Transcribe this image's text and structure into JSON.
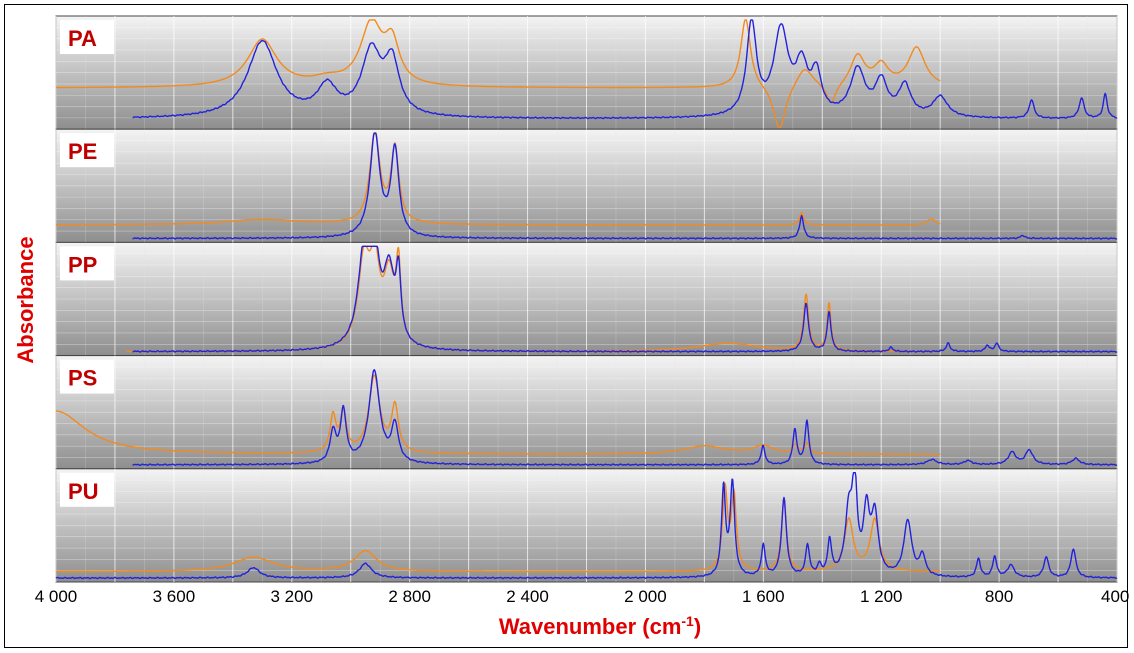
{
  "chart_data": {
    "type": "line",
    "xlabel": "Wavenumber (cm",
    "xlabel_sup": "-1",
    "xlabel_close": ")",
    "ylabel": "Absorbance",
    "xlim": [
      4000,
      400
    ],
    "x_reversed": true,
    "x_ticks": [
      4000,
      3600,
      3200,
      2800,
      2400,
      2000,
      1600,
      1200,
      800,
      400
    ],
    "x_tick_labels": [
      "4 000",
      "3 600",
      "3 200",
      "2 800",
      "2 400",
      "2 000",
      "1 600",
      "1 200",
      "800",
      "400"
    ],
    "grid": true,
    "series_colors": {
      "reference": "#f28a1e",
      "sample": "#2222dd"
    },
    "panels": [
      {
        "label": "PA",
        "ref_baseline": 0.36,
        "sample_baseline": 0.06,
        "ref_start": 4000,
        "ref_end": 1000,
        "sample_start": 3740,
        "sample_end": 400,
        "reference": [
          {
            "x": 3300,
            "h": 0.46,
            "w": 60
          },
          {
            "x": 3080,
            "h": 0.06,
            "w": 60
          },
          {
            "x": 2930,
            "h": 0.6,
            "w": 45
          },
          {
            "x": 2860,
            "h": 0.38,
            "w": 30
          },
          {
            "x": 1660,
            "h": 0.68,
            "w": 20
          },
          {
            "x": 1545,
            "h": -0.45,
            "w": 25
          },
          {
            "x": 1460,
            "h": 0.2,
            "w": 35
          },
          {
            "x": 1370,
            "h": -0.2,
            "w": 20
          },
          {
            "x": 1280,
            "h": 0.3,
            "w": 30
          },
          {
            "x": 1200,
            "h": 0.2,
            "w": 30
          },
          {
            "x": 1080,
            "h": 0.38,
            "w": 35
          }
        ],
        "sample": [
          {
            "x": 3300,
            "h": 0.74,
            "w": 60
          },
          {
            "x": 3080,
            "h": 0.28,
            "w": 40
          },
          {
            "x": 2930,
            "h": 0.62,
            "w": 40
          },
          {
            "x": 2860,
            "h": 0.5,
            "w": 30
          },
          {
            "x": 1640,
            "h": 0.9,
            "w": 20
          },
          {
            "x": 1540,
            "h": 0.82,
            "w": 30
          },
          {
            "x": 1470,
            "h": 0.45,
            "w": 25
          },
          {
            "x": 1420,
            "h": 0.38,
            "w": 20
          },
          {
            "x": 1280,
            "h": 0.45,
            "w": 30
          },
          {
            "x": 1200,
            "h": 0.33,
            "w": 25
          },
          {
            "x": 1120,
            "h": 0.3,
            "w": 25
          },
          {
            "x": 1000,
            "h": 0.2,
            "w": 30
          },
          {
            "x": 690,
            "h": 0.18,
            "w": 10
          },
          {
            "x": 520,
            "h": 0.2,
            "w": 10
          },
          {
            "x": 440,
            "h": 0.24,
            "w": 8
          }
        ]
      },
      {
        "label": "PE",
        "ref_baseline": 0.13,
        "sample_baseline": 0.0,
        "ref_start": 4000,
        "ref_end": 1000,
        "sample_start": 3740,
        "sample_end": 400,
        "reference": [
          {
            "x": 3300,
            "h": 0.05,
            "w": 150
          },
          {
            "x": 2918,
            "h": 0.88,
            "w": 20
          },
          {
            "x": 2850,
            "h": 0.72,
            "w": 16
          },
          {
            "x": 1470,
            "h": 0.12,
            "w": 8
          },
          {
            "x": 1030,
            "h": 0.06,
            "w": 15
          }
        ],
        "sample": [
          {
            "x": 2918,
            "h": 1.0,
            "w": 20
          },
          {
            "x": 2850,
            "h": 0.84,
            "w": 16
          },
          {
            "x": 1470,
            "h": 0.22,
            "w": 8
          },
          {
            "x": 720,
            "h": 0.03,
            "w": 8
          }
        ]
      },
      {
        "label": "PP",
        "ref_baseline": 0.0,
        "sample_baseline": 0.0,
        "ref_start": 3760,
        "ref_end": 1000,
        "sample_start": 3740,
        "sample_end": 400,
        "reference": [
          {
            "x": 2955,
            "h": 0.82,
            "w": 24
          },
          {
            "x": 2918,
            "h": 0.72,
            "w": 20
          },
          {
            "x": 2870,
            "h": 0.66,
            "w": 22
          },
          {
            "x": 2838,
            "h": 0.72,
            "w": 10
          },
          {
            "x": 1720,
            "h": 0.08,
            "w": 120
          },
          {
            "x": 1455,
            "h": 0.54,
            "w": 10
          },
          {
            "x": 1377,
            "h": 0.46,
            "w": 8
          }
        ],
        "sample": [
          {
            "x": 2955,
            "h": 0.9,
            "w": 24
          },
          {
            "x": 2918,
            "h": 0.78,
            "w": 20
          },
          {
            "x": 2870,
            "h": 0.7,
            "w": 22
          },
          {
            "x": 2838,
            "h": 0.62,
            "w": 10
          },
          {
            "x": 1455,
            "h": 0.46,
            "w": 10
          },
          {
            "x": 1377,
            "h": 0.38,
            "w": 8
          },
          {
            "x": 1167,
            "h": 0.04,
            "w": 8
          },
          {
            "x": 973,
            "h": 0.08,
            "w": 8
          },
          {
            "x": 840,
            "h": 0.06,
            "w": 8
          },
          {
            "x": 808,
            "h": 0.08,
            "w": 8
          }
        ]
      },
      {
        "label": "PS",
        "ref_baseline": 0.1,
        "sample_baseline": 0.0,
        "ref_start": 4000,
        "ref_end": 1000,
        "sample_start": 3740,
        "sample_end": 400,
        "reference": [
          {
            "x": 4000,
            "h": 0.42,
            "w": 120
          },
          {
            "x": 3060,
            "h": 0.35,
            "w": 12
          },
          {
            "x": 3025,
            "h": 0.38,
            "w": 12
          },
          {
            "x": 2920,
            "h": 0.74,
            "w": 22
          },
          {
            "x": 2850,
            "h": 0.44,
            "w": 14
          },
          {
            "x": 1800,
            "h": 0.08,
            "w": 80
          },
          {
            "x": 1601,
            "h": 0.08,
            "w": 40
          },
          {
            "x": 1493,
            "h": 0.08,
            "w": 10
          },
          {
            "x": 1452,
            "h": 0.1,
            "w": 10
          }
        ],
        "sample": [
          {
            "x": 3060,
            "h": 0.3,
            "w": 12
          },
          {
            "x": 3025,
            "h": 0.5,
            "w": 12
          },
          {
            "x": 2920,
            "h": 0.9,
            "w": 22
          },
          {
            "x": 2850,
            "h": 0.36,
            "w": 14
          },
          {
            "x": 1601,
            "h": 0.18,
            "w": 8
          },
          {
            "x": 1493,
            "h": 0.34,
            "w": 8
          },
          {
            "x": 1452,
            "h": 0.42,
            "w": 8
          },
          {
            "x": 1028,
            "h": 0.05,
            "w": 20
          },
          {
            "x": 906,
            "h": 0.04,
            "w": 15
          },
          {
            "x": 756,
            "h": 0.12,
            "w": 15
          },
          {
            "x": 698,
            "h": 0.14,
            "w": 15
          },
          {
            "x": 540,
            "h": 0.06,
            "w": 15
          }
        ]
      },
      {
        "label": "PU",
        "ref_baseline": 0.06,
        "sample_baseline": 0.0,
        "ref_start": 4000,
        "ref_end": 1000,
        "sample_start": 4000,
        "sample_end": 400,
        "reference": [
          {
            "x": 3330,
            "h": 0.14,
            "w": 80
          },
          {
            "x": 2950,
            "h": 0.2,
            "w": 45
          },
          {
            "x": 1730,
            "h": 0.78,
            "w": 10
          },
          {
            "x": 1700,
            "h": 0.72,
            "w": 10
          },
          {
            "x": 1530,
            "h": 0.7,
            "w": 10
          },
          {
            "x": 1310,
            "h": 0.5,
            "w": 18
          },
          {
            "x": 1222,
            "h": 0.5,
            "w": 18
          }
        ],
        "sample": [
          {
            "x": 3330,
            "h": 0.1,
            "w": 25
          },
          {
            "x": 2950,
            "h": 0.14,
            "w": 25
          },
          {
            "x": 1735,
            "h": 0.86,
            "w": 8
          },
          {
            "x": 1705,
            "h": 0.9,
            "w": 9
          },
          {
            "x": 1600,
            "h": 0.3,
            "w": 8
          },
          {
            "x": 1530,
            "h": 0.76,
            "w": 10
          },
          {
            "x": 1450,
            "h": 0.3,
            "w": 8
          },
          {
            "x": 1410,
            "h": 0.1,
            "w": 8
          },
          {
            "x": 1375,
            "h": 0.34,
            "w": 8
          },
          {
            "x": 1310,
            "h": 0.6,
            "w": 15
          },
          {
            "x": 1290,
            "h": 0.82,
            "w": 10
          },
          {
            "x": 1250,
            "h": 0.6,
            "w": 12
          },
          {
            "x": 1222,
            "h": 0.58,
            "w": 14
          },
          {
            "x": 1110,
            "h": 0.54,
            "w": 16
          },
          {
            "x": 1060,
            "h": 0.2,
            "w": 12
          },
          {
            "x": 870,
            "h": 0.18,
            "w": 8
          },
          {
            "x": 815,
            "h": 0.2,
            "w": 8
          },
          {
            "x": 760,
            "h": 0.12,
            "w": 14
          },
          {
            "x": 640,
            "h": 0.2,
            "w": 10
          },
          {
            "x": 548,
            "h": 0.28,
            "w": 10
          }
        ]
      }
    ]
  }
}
